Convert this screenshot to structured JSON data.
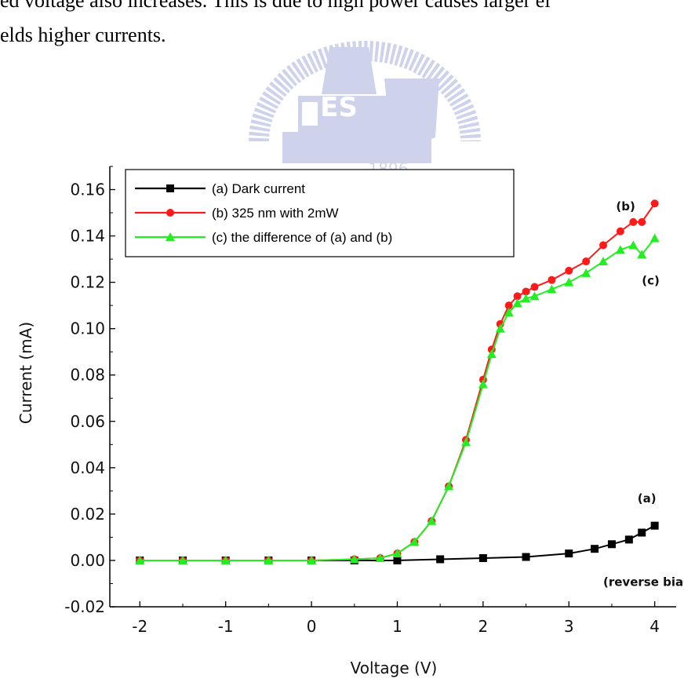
{
  "text_lines": [
    "ed voltage also increases. This is due to high power causes larger el",
    "elds higher currents."
  ],
  "watermark": {
    "letters": "ES",
    "year": "1896"
  },
  "colors": {
    "a": "#000000",
    "b": "#ff1a1a",
    "c": "#22ee22",
    "watermark": "#c6cbe8"
  },
  "chart_data": {
    "type": "scatter",
    "xlabel": "Voltage (V)",
    "ylabel": "Current (mA)",
    "xlim": [
      -2.35,
      4.25
    ],
    "ylim": [
      -0.02,
      0.17
    ],
    "xticks": [
      -2,
      -1,
      0,
      1,
      2,
      3,
      4
    ],
    "xtick_labels": [
      "-2",
      "-1",
      "0",
      "1",
      "2",
      "3",
      "4"
    ],
    "yticks": [
      -0.02,
      0.0,
      0.02,
      0.04,
      0.06,
      0.08,
      0.1,
      0.12,
      0.14,
      0.16
    ],
    "ytick_labels": [
      "-0.02",
      "0.00",
      "0.02",
      "0.04",
      "0.06",
      "0.08",
      "0.10",
      "0.12",
      "0.14",
      "0.16"
    ],
    "legend_position": "top-left",
    "series": [
      {
        "name": "(a) Dark current",
        "marker": "square",
        "x": [
          -2.0,
          -1.5,
          -1.0,
          -0.5,
          0.0,
          0.5,
          1.0,
          1.5,
          2.0,
          2.5,
          3.0,
          3.3,
          3.5,
          3.7,
          3.85,
          4.0
        ],
        "y": [
          0.0,
          0.0,
          0.0,
          0.0,
          0.0,
          0.0,
          0.0,
          0.0005,
          0.001,
          0.0015,
          0.003,
          0.005,
          0.007,
          0.009,
          0.012,
          0.015
        ]
      },
      {
        "name": "(b) 325 nm with 2mW",
        "marker": "circle",
        "x": [
          -2.0,
          -1.5,
          -1.0,
          -0.5,
          0.0,
          0.5,
          0.8,
          1.0,
          1.2,
          1.4,
          1.6,
          1.8,
          2.0,
          2.1,
          2.2,
          2.3,
          2.4,
          2.5,
          2.6,
          2.8,
          3.0,
          3.2,
          3.4,
          3.6,
          3.75,
          3.85,
          4.0
        ],
        "y": [
          0.0,
          0.0,
          0.0,
          0.0,
          0.0,
          0.0005,
          0.001,
          0.003,
          0.008,
          0.017,
          0.032,
          0.052,
          0.078,
          0.091,
          0.102,
          0.11,
          0.114,
          0.116,
          0.118,
          0.121,
          0.125,
          0.129,
          0.136,
          0.142,
          0.146,
          0.146,
          0.154
        ]
      },
      {
        "name": "(c) the difference of (a) and (b)",
        "marker": "triangle",
        "x": [
          -2.0,
          -1.5,
          -1.0,
          -0.5,
          0.0,
          0.5,
          0.8,
          1.0,
          1.2,
          1.4,
          1.6,
          1.8,
          2.0,
          2.1,
          2.2,
          2.3,
          2.4,
          2.5,
          2.6,
          2.8,
          3.0,
          3.2,
          3.4,
          3.6,
          3.75,
          3.85,
          4.0
        ],
        "y": [
          0.0,
          0.0,
          0.0,
          0.0,
          0.0,
          0.0005,
          0.001,
          0.003,
          0.008,
          0.017,
          0.032,
          0.051,
          0.076,
          0.089,
          0.1,
          0.107,
          0.111,
          0.113,
          0.114,
          0.117,
          0.12,
          0.124,
          0.129,
          0.134,
          0.136,
          0.132,
          0.139
        ]
      }
    ],
    "annotations": [
      {
        "text": "(b)",
        "x": 3.55,
        "y": 0.151
      },
      {
        "text": "(c)",
        "x": 3.85,
        "y": 0.119
      },
      {
        "text": "(a)",
        "x": 3.8,
        "y": 0.025
      },
      {
        "text": "(reverse bias)",
        "x": 3.4,
        "y": -0.011
      }
    ]
  }
}
